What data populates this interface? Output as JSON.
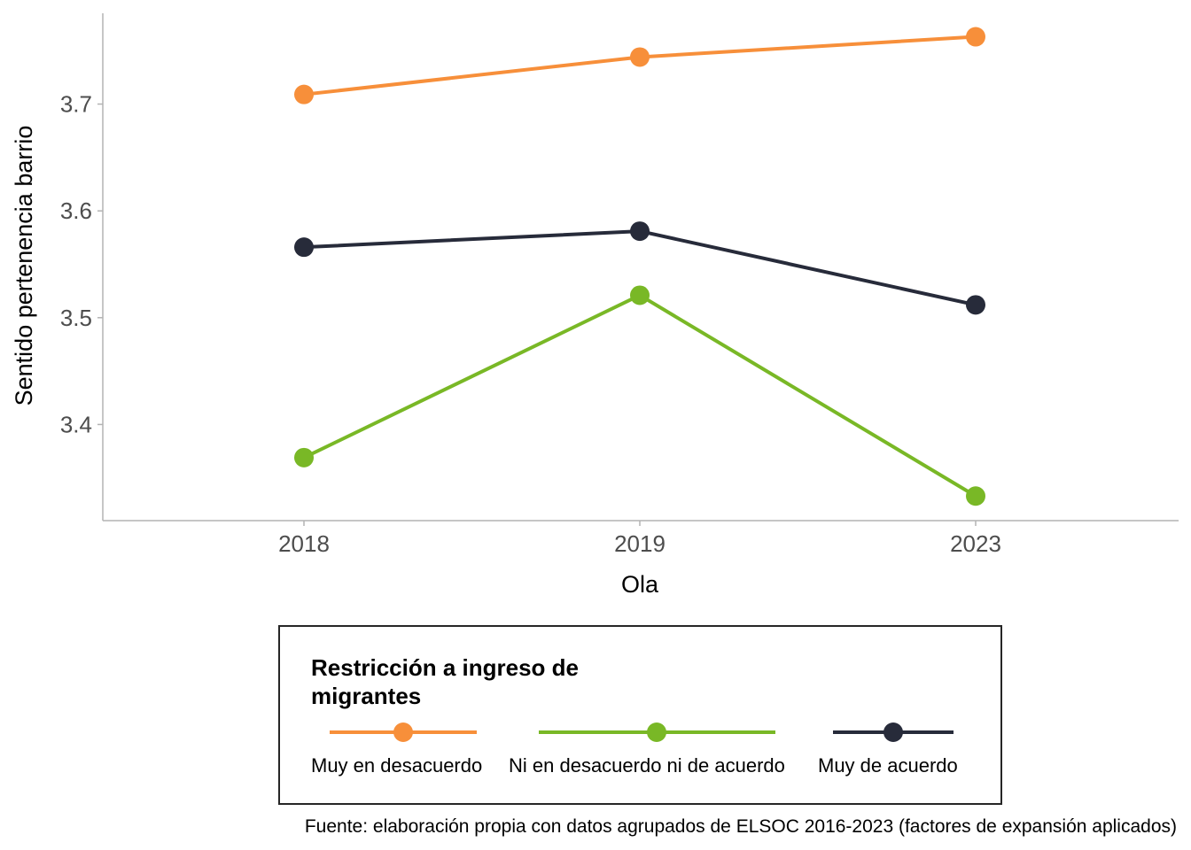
{
  "chart_data": {
    "type": "line",
    "xlabel": "Ola",
    "ylabel": "Sentido pertenencia barrio",
    "categories": [
      "2018",
      "2019",
      "2023"
    ],
    "ylim": [
      3.31,
      3.785
    ],
    "yticks": [
      3.4,
      3.5,
      3.6,
      3.7
    ],
    "ytick_labels": [
      "3.4",
      "3.5",
      "3.6",
      "3.7"
    ],
    "grid": false,
    "legend": {
      "title_lines": [
        "Restricción a ingreso de",
        "migrantes"
      ],
      "position": "bottom"
    },
    "series": [
      {
        "name": "Muy en desacuerdo",
        "color": "#F78F3A",
        "values": [
          3.709,
          3.744,
          3.763
        ]
      },
      {
        "name": "Ni en desacuerdo ni de acuerdo",
        "color": "#79B826",
        "values": [
          3.369,
          3.521,
          3.333
        ]
      },
      {
        "name": "Muy de acuerdo",
        "color": "#272B3A",
        "values": [
          3.566,
          3.581,
          3.512
        ]
      }
    ],
    "caption": "Fuente: elaboración propia con datos agrupados de ELSOC 2016-2023 (factores de expansión aplicados)"
  }
}
